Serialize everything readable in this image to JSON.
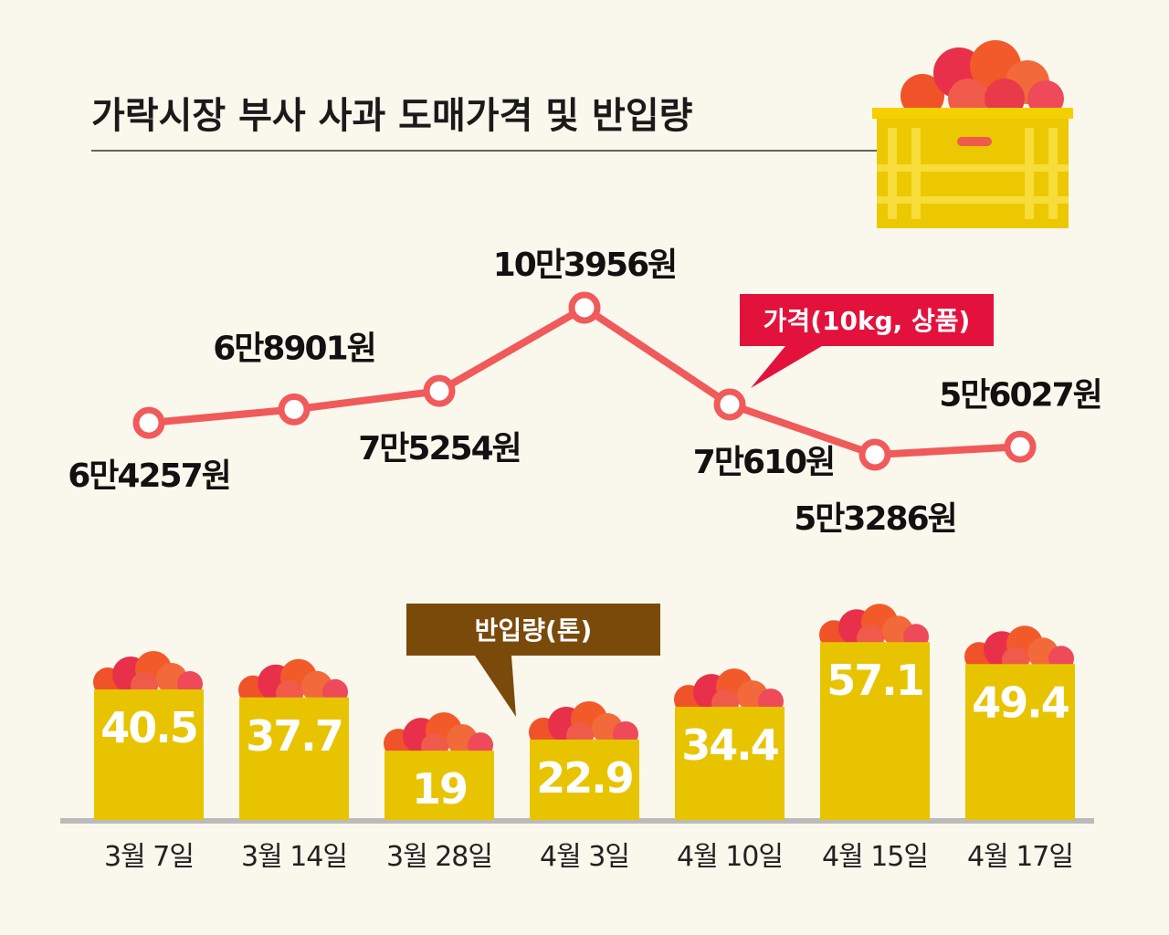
{
  "title": "가락시장 부사 사과 도매가격 및 반입량",
  "colors": {
    "line": "#f05a5a",
    "bar": "#e8c400",
    "price_callout": "#e3123c",
    "volume_callout": "#7a4a0b",
    "background": "#faf7ec"
  },
  "chart_data": [
    {
      "type": "line",
      "title": "가격(10kg, 상품)",
      "categories": [
        "3월 7일",
        "3월 14일",
        "3월 28일",
        "4월 3일",
        "4월 10일",
        "4월 15일",
        "4월 17일"
      ],
      "values": [
        64257,
        68901,
        75254,
        103956,
        70610,
        53286,
        56027
      ],
      "data_labels": [
        "6만4257원",
        "6만8901원",
        "7만5254원",
        "10만3956원",
        "7만610원",
        "5만3286원",
        "5만6027원"
      ],
      "unit": "원"
    },
    {
      "type": "bar",
      "title": "반입량(톤)",
      "categories": [
        "3월 7일",
        "3월 14일",
        "3월 28일",
        "4월 3일",
        "4월 10일",
        "4월 15일",
        "4월 17일"
      ],
      "values": [
        40.5,
        37.7,
        19,
        22.9,
        34.4,
        57.1,
        49.4
      ],
      "data_labels": [
        "40.5",
        "37.7",
        "19",
        "22.9",
        "34.4",
        "57.1",
        "49.4"
      ],
      "unit": "톤"
    }
  ]
}
